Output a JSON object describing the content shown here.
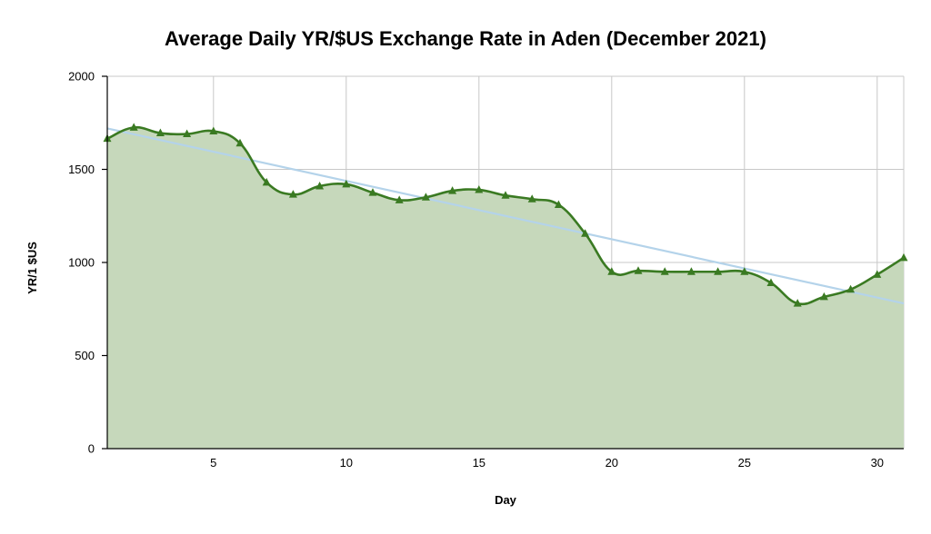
{
  "chart_data": {
    "type": "area",
    "title": "Average Daily YR/$US Exchange Rate in Aden (December 2021)",
    "xlabel": "Day",
    "ylabel": "YR/1 $US",
    "xlim": [
      1,
      31
    ],
    "ylim": [
      0,
      2000
    ],
    "xticks": [
      5,
      10,
      15,
      20,
      25,
      30
    ],
    "yticks": [
      0,
      500,
      1000,
      1500,
      2000
    ],
    "grid": true,
    "legend": "none",
    "series": [
      {
        "x": [
          1,
          2,
          3,
          4,
          5,
          6,
          7,
          8,
          9,
          10,
          11,
          12,
          13,
          14,
          15,
          16,
          17,
          18,
          19,
          20,
          21,
          22,
          23,
          24,
          25,
          26,
          27,
          28,
          29,
          30,
          31
        ],
        "values": [
          1665,
          1725,
          1695,
          1690,
          1705,
          1640,
          1430,
          1365,
          1410,
          1420,
          1375,
          1335,
          1350,
          1385,
          1390,
          1360,
          1340,
          1310,
          1155,
          950,
          955,
          950,
          950,
          950,
          950,
          890,
          780,
          815,
          855,
          935,
          1025
        ],
        "line_color": "#3a7a22",
        "fill_color": "#c6d8bb",
        "marker": "triangle"
      }
    ],
    "trendline": {
      "type": "linear",
      "start": [
        1,
        1720
      ],
      "end": [
        31,
        780
      ],
      "color": "#b4d3ea"
    }
  }
}
